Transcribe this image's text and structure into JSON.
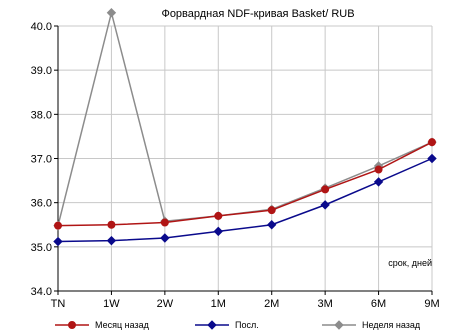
{
  "chart_data": {
    "type": "line",
    "title": "Форвардная NDF-кривая Basket/ RUB",
    "annotation": "срок, дней",
    "categories": [
      "TN",
      "1W",
      "2W",
      "1M",
      "2M",
      "3M",
      "6M",
      "9M"
    ],
    "ylim": [
      34.0,
      40.0
    ],
    "yticks": [
      "34.0",
      "35.0",
      "36.0",
      "37.0",
      "38.0",
      "39.0",
      "40.0"
    ],
    "grid": true,
    "legend_position": "bottom",
    "series": [
      {
        "name": "Месяц назад",
        "color": "#b01515",
        "marker": "circle",
        "values": [
          35.48,
          35.5,
          35.55,
          35.7,
          35.83,
          36.3,
          36.75,
          37.37
        ]
      },
      {
        "name": "Посл.",
        "color": "#0a0a8c",
        "marker": "diamond",
        "values": [
          35.12,
          35.14,
          35.2,
          35.35,
          35.5,
          35.95,
          36.47,
          37.0
        ]
      },
      {
        "name": "Неделя назад",
        "color": "#8c8c8c",
        "marker": "diamond",
        "values": [
          35.48,
          40.3,
          35.58,
          35.7,
          35.85,
          36.33,
          36.83,
          37.37
        ]
      }
    ]
  }
}
